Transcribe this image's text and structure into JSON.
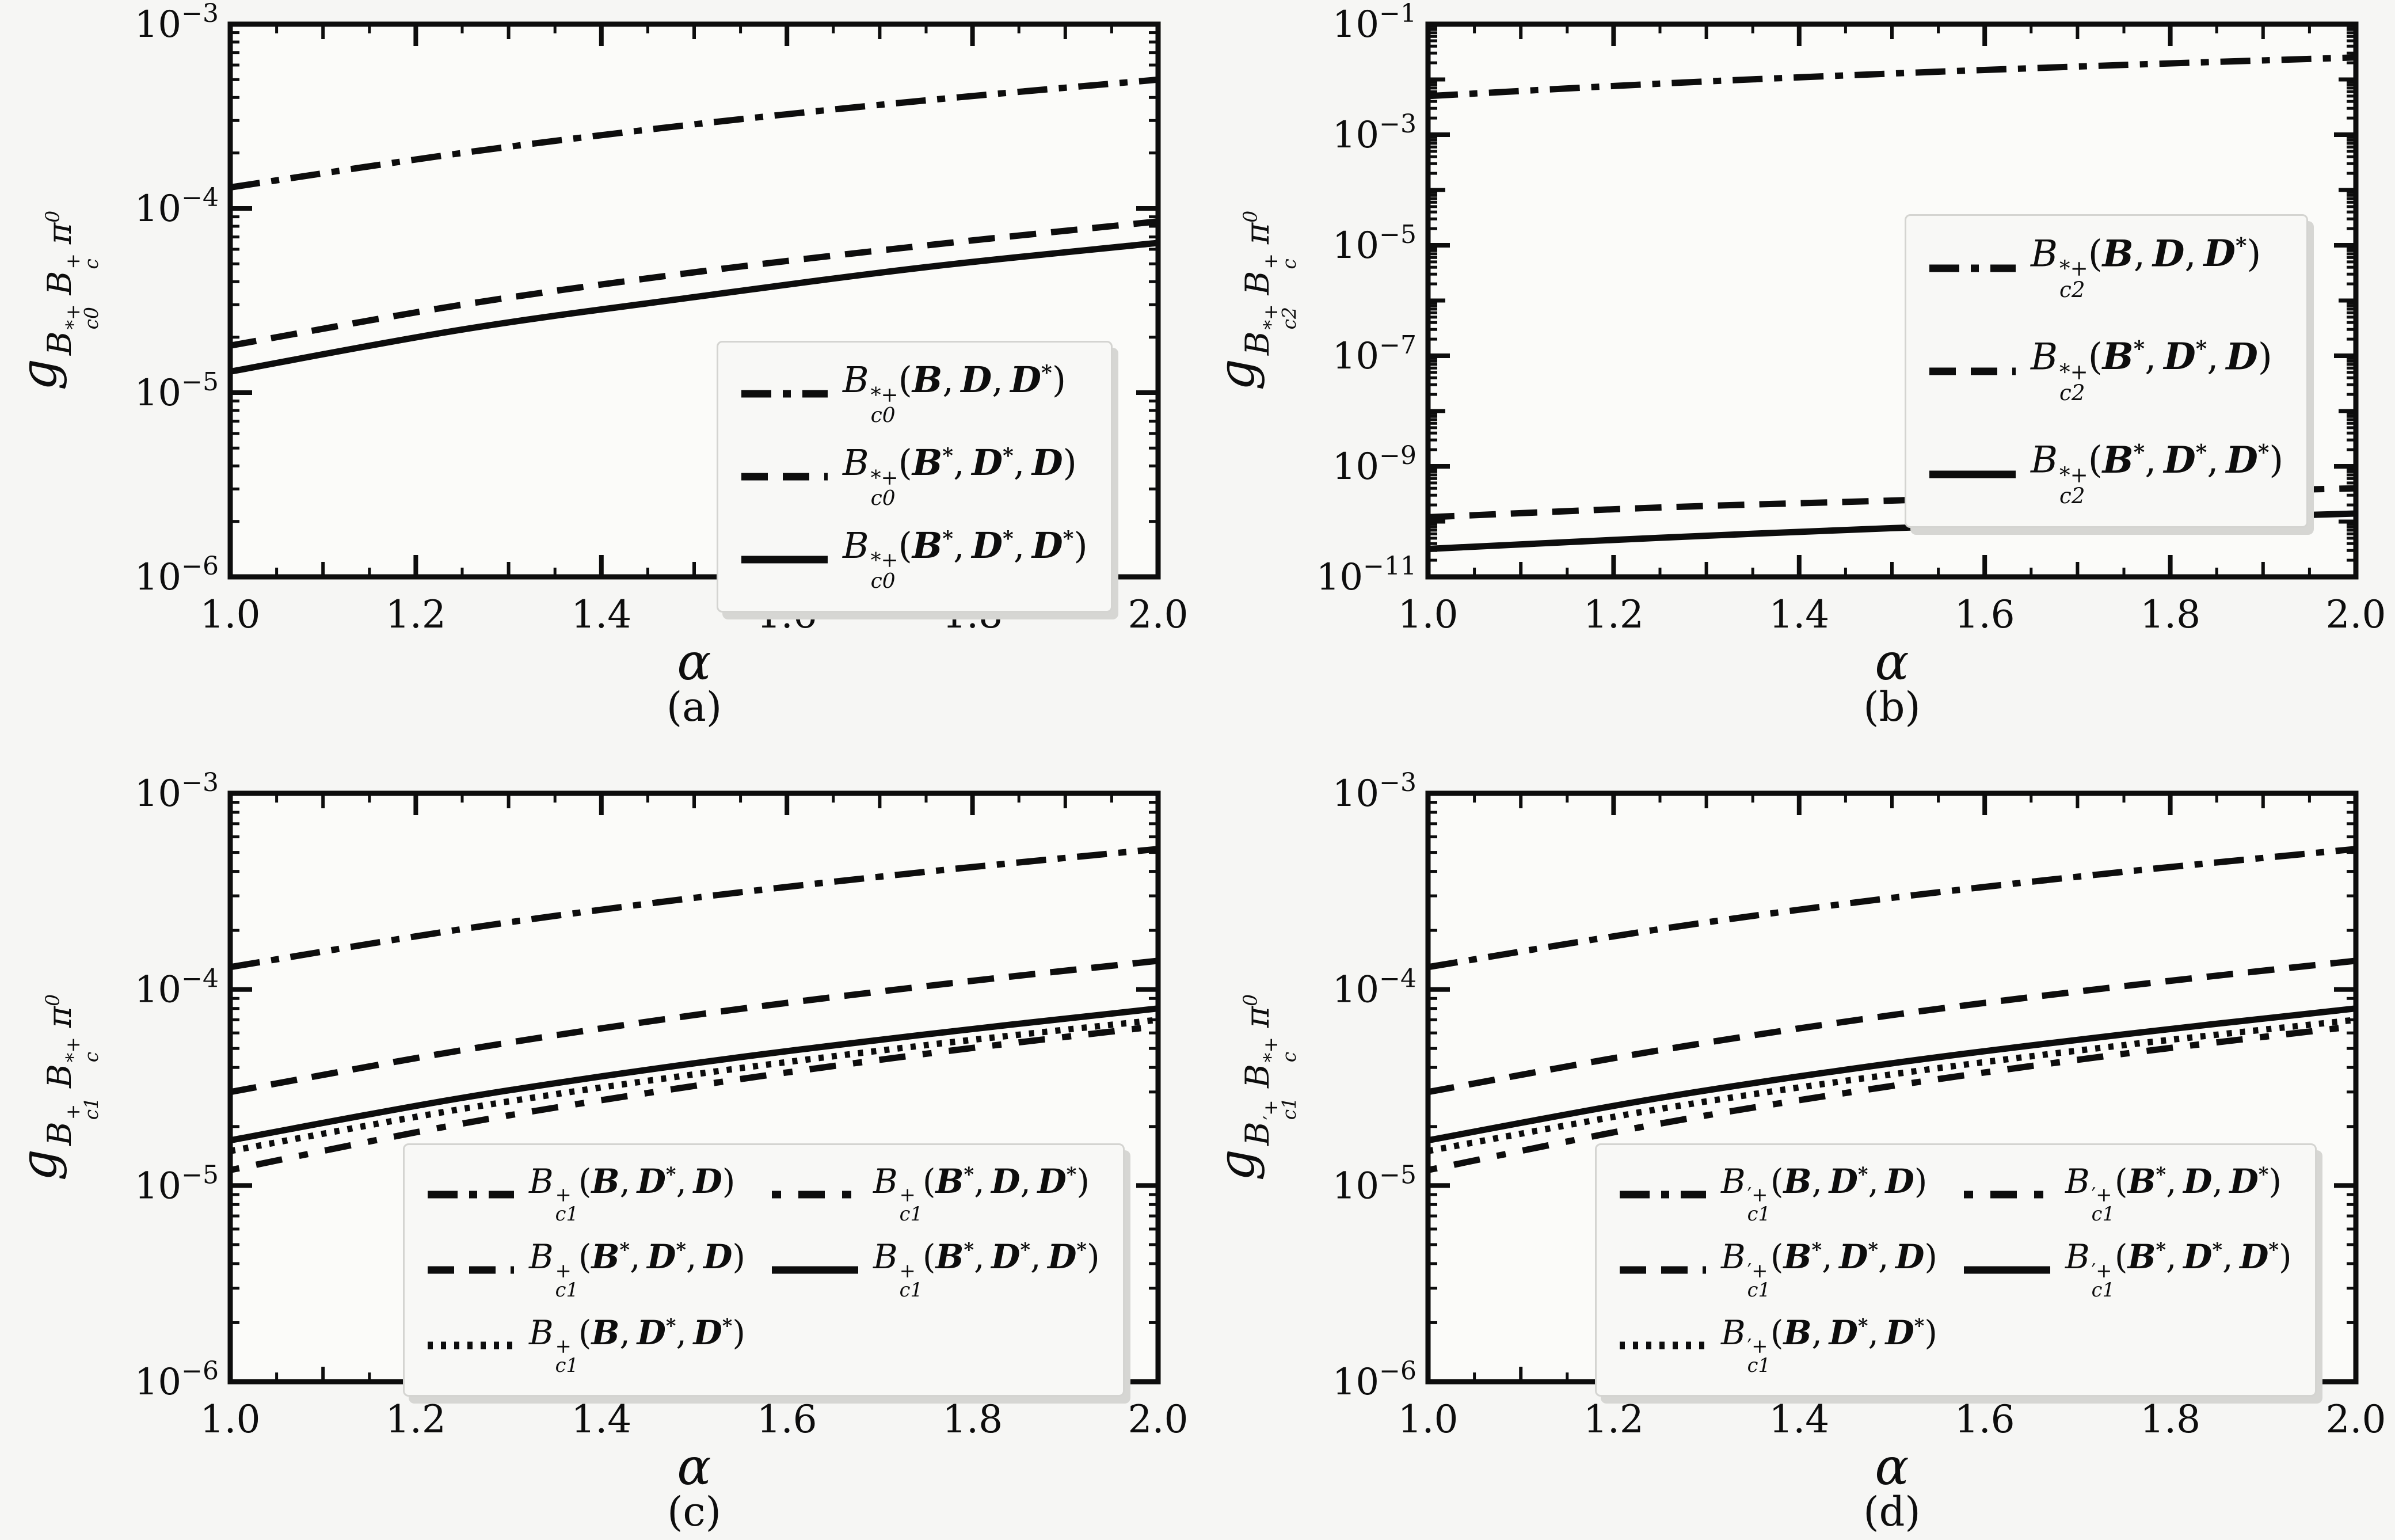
{
  "figure": {
    "background": "#f6f6f4",
    "ink": "#0d0d0d",
    "panel_captions": [
      "(a)",
      "(b)",
      "(c)",
      "(d)"
    ]
  },
  "chart_data": [
    {
      "id": "a",
      "type": "line",
      "caption": "(a)",
      "xlabel": "α",
      "x_range": [
        1.0,
        2.0
      ],
      "x_tick_labels": [
        "1.0",
        "1.2",
        "1.4",
        "1.6",
        "1.8",
        "2.0"
      ],
      "y_scale": "log",
      "y_exp_top": -3,
      "y_exp_bottom": -6,
      "y_tick_exponents": [
        -3,
        -4,
        -5,
        -6
      ],
      "grid": false,
      "ylabel": {
        "g": "g",
        "terms": [
          {
            "b": "B",
            "sup": "*+",
            "sub": "c0"
          },
          {
            "b": "B",
            "sup": "+",
            "sub": "c"
          },
          {
            "b": "π",
            "sup": "0",
            "sub": ""
          }
        ]
      },
      "legend_pos": "lower right inside",
      "legend_order": [
        0,
        1,
        2
      ],
      "series": [
        {
          "style": "dashdot",
          "label": {
            "b": "B",
            "sup": "*+",
            "sub": "c0",
            "args": [
              [
                "B",
                ""
              ],
              [
                "D",
                ""
              ],
              [
                "D",
                "*"
              ]
            ]
          },
          "alpha": [
            1.0,
            1.25,
            1.5,
            1.75,
            2.0
          ],
          "values": [
            0.00013,
            0.0002,
            0.000286,
            0.000386,
            0.0005
          ]
        },
        {
          "style": "dashed",
          "label": {
            "b": "B",
            "sup": "*+",
            "sub": "c0",
            "args": [
              [
                "B",
                "*"
              ],
              [
                "D",
                "*"
              ],
              [
                "D",
                ""
              ]
            ]
          },
          "alpha": [
            1.0,
            1.25,
            1.5,
            1.75,
            2.0
          ],
          "values": [
            1.8e-05,
            3e-05,
            4.5e-05,
            6.3e-05,
            8.5e-05
          ]
        },
        {
          "style": "solid",
          "label": {
            "b": "B",
            "sup": "*+",
            "sub": "c0",
            "args": [
              [
                "B",
                "*"
              ],
              [
                "D",
                "*"
              ],
              [
                "D",
                "*"
              ]
            ]
          },
          "alpha": [
            1.0,
            1.25,
            1.5,
            1.75,
            2.0
          ],
          "values": [
            1.3e-05,
            2.2e-05,
            3.3e-05,
            4.8e-05,
            6.5e-05
          ]
        }
      ]
    },
    {
      "id": "b",
      "type": "line",
      "caption": "(b)",
      "xlabel": "α",
      "x_range": [
        1.0,
        2.0
      ],
      "x_tick_labels": [
        "1.0",
        "1.2",
        "1.4",
        "1.6",
        "1.8",
        "2.0"
      ],
      "y_scale": "log",
      "y_exp_top": -1,
      "y_exp_bottom": -11,
      "y_tick_exponents": [
        -1,
        -3,
        -5,
        -7,
        -9,
        -11
      ],
      "grid": false,
      "ylabel": {
        "g": "g",
        "terms": [
          {
            "b": "B",
            "sup": "*+",
            "sub": "c2"
          },
          {
            "b": "B",
            "sup": "+",
            "sub": "c"
          },
          {
            "b": "π",
            "sup": "0",
            "sub": ""
          }
        ]
      },
      "legend_pos": "upper center inside",
      "legend_order": [
        0,
        1,
        2
      ],
      "series": [
        {
          "style": "dashdot",
          "label": {
            "b": "B",
            "sup": "*+",
            "sub": "c2",
            "args": [
              [
                "B",
                ""
              ],
              [
                "D",
                ""
              ],
              [
                "D",
                "*"
              ]
            ]
          },
          "alpha": [
            1.0,
            1.25,
            1.5,
            1.75,
            2.0
          ],
          "values": [
            0.005,
            0.0084,
            0.0128,
            0.0183,
            0.025
          ]
        },
        {
          "style": "dashed",
          "label": {
            "b": "B",
            "sup": "*+",
            "sub": "c2",
            "args": [
              [
                "B",
                "*"
              ],
              [
                "D",
                "*"
              ],
              [
                "D",
                ""
              ]
            ]
          },
          "alpha": [
            1.0,
            1.25,
            1.5,
            1.75,
            2.0
          ],
          "values": [
            1.2e-10,
            1.8e-10,
            2.4e-10,
            3.2e-10,
            4e-10
          ]
        },
        {
          "style": "solid",
          "label": {
            "b": "B",
            "sup": "*+",
            "sub": "c2",
            "args": [
              [
                "B",
                "*"
              ],
              [
                "D",
                "*"
              ],
              [
                "D",
                "*"
              ]
            ]
          },
          "alpha": [
            1.0,
            1.25,
            1.5,
            1.75,
            2.0
          ],
          "values": [
            3.2e-11,
            5.1e-11,
            7.6e-11,
            1.05e-10,
            1.4e-10
          ]
        }
      ]
    },
    {
      "id": "c",
      "type": "line",
      "caption": "(c)",
      "xlabel": "α",
      "x_range": [
        1.0,
        2.0
      ],
      "x_tick_labels": [
        "1.0",
        "1.2",
        "1.4",
        "1.6",
        "1.8",
        "2.0"
      ],
      "y_scale": "log",
      "y_exp_top": -3,
      "y_exp_bottom": -6,
      "y_tick_exponents": [
        -3,
        -4,
        -5,
        -6
      ],
      "grid": false,
      "ylabel": {
        "g": "g",
        "terms": [
          {
            "b": "B",
            "sup": "+",
            "sub": "c1"
          },
          {
            "b": "B",
            "sup": "*+",
            "sub": "c"
          },
          {
            "b": "π",
            "sup": "0",
            "sub": ""
          }
        ]
      },
      "legend_pos": "lower right inside, two columns",
      "legend_order": [
        0,
        3,
        1,
        4,
        2
      ],
      "series": [
        {
          "style": "dashdot",
          "label": {
            "b": "B",
            "sup": "+",
            "sub": "c1",
            "args": [
              [
                "B",
                ""
              ],
              [
                "D",
                "*"
              ],
              [
                "D",
                ""
              ]
            ]
          },
          "alpha": [
            1.0,
            1.25,
            1.5,
            1.75,
            2.0
          ],
          "values": [
            0.00013,
            0.000203,
            0.000293,
            0.000398,
            0.00052
          ]
        },
        {
          "style": "dashed",
          "label": {
            "b": "B",
            "sup": "+",
            "sub": "c1",
            "args": [
              [
                "B",
                "*"
              ],
              [
                "D",
                "*"
              ],
              [
                "D",
                ""
              ]
            ]
          },
          "alpha": [
            1.0,
            1.25,
            1.5,
            1.75,
            2.0
          ],
          "values": [
            3e-05,
            4.9e-05,
            7.4e-05,
            0.000104,
            0.00014
          ]
        },
        {
          "style": "dotted",
          "label": {
            "b": "B",
            "sup": "+",
            "sub": "c1",
            "args": [
              [
                "B",
                ""
              ],
              [
                "D",
                "*"
              ],
              [
                "D",
                "*"
              ]
            ]
          },
          "alpha": [
            1.0,
            1.25,
            1.5,
            1.75,
            2.0
          ],
          "values": [
            1.5e-05,
            2.46e-05,
            3.69e-05,
            5.2e-05,
            7e-05
          ]
        },
        {
          "style": "loosedashdot",
          "label": {
            "b": "B",
            "sup": "+",
            "sub": "c1",
            "args": [
              [
                "B",
                "*"
              ],
              [
                "D",
                ""
              ],
              [
                "D",
                "*"
              ]
            ]
          },
          "alpha": [
            1.0,
            1.25,
            1.5,
            1.75,
            2.0
          ],
          "values": [
            1.2e-05,
            2.07e-05,
            3.22e-05,
            4.7e-05,
            6.5e-05
          ]
        },
        {
          "style": "solid",
          "label": {
            "b": "B",
            "sup": "+",
            "sub": "c1",
            "args": [
              [
                "B",
                "*"
              ],
              [
                "D",
                "*"
              ],
              [
                "D",
                "*"
              ]
            ]
          },
          "alpha": [
            1.0,
            1.25,
            1.5,
            1.75,
            2.0
          ],
          "values": [
            1.7e-05,
            2.8e-05,
            4.2e-05,
            5.9e-05,
            8e-05
          ]
        }
      ]
    },
    {
      "id": "d",
      "type": "line",
      "caption": "(d)",
      "xlabel": "α",
      "x_range": [
        1.0,
        2.0
      ],
      "x_tick_labels": [
        "1.0",
        "1.2",
        "1.4",
        "1.6",
        "1.8",
        "2.0"
      ],
      "y_scale": "log",
      "y_exp_top": -3,
      "y_exp_bottom": -6,
      "y_tick_exponents": [
        -3,
        -4,
        -5,
        -6
      ],
      "grid": false,
      "ylabel": {
        "g": "g",
        "terms": [
          {
            "b": "B",
            "sup": "′+",
            "sub": "c1"
          },
          {
            "b": "B",
            "sup": "*+",
            "sub": "c"
          },
          {
            "b": "π",
            "sup": "0",
            "sub": ""
          }
        ]
      },
      "legend_pos": "lower right inside, two columns",
      "legend_order": [
        0,
        3,
        1,
        4,
        2
      ],
      "series": [
        {
          "style": "dashdot",
          "label": {
            "b": "B",
            "sup": "′+",
            "sub": "c1",
            "args": [
              [
                "B",
                ""
              ],
              [
                "D",
                "*"
              ],
              [
                "D",
                ""
              ]
            ]
          },
          "alpha": [
            1.0,
            1.25,
            1.5,
            1.75,
            2.0
          ],
          "values": [
            0.00013,
            0.000203,
            0.000293,
            0.000398,
            0.00052
          ]
        },
        {
          "style": "dashed",
          "label": {
            "b": "B",
            "sup": "′+",
            "sub": "c1",
            "args": [
              [
                "B",
                "*"
              ],
              [
                "D",
                "*"
              ],
              [
                "D",
                ""
              ]
            ]
          },
          "alpha": [
            1.0,
            1.25,
            1.5,
            1.75,
            2.0
          ],
          "values": [
            3e-05,
            4.9e-05,
            7.4e-05,
            0.000104,
            0.00014
          ]
        },
        {
          "style": "dotted",
          "label": {
            "b": "B",
            "sup": "′+",
            "sub": "c1",
            "args": [
              [
                "B",
                ""
              ],
              [
                "D",
                "*"
              ],
              [
                "D",
                "*"
              ]
            ]
          },
          "alpha": [
            1.0,
            1.25,
            1.5,
            1.75,
            2.0
          ],
          "values": [
            1.5e-05,
            2.46e-05,
            3.69e-05,
            5.2e-05,
            7e-05
          ]
        },
        {
          "style": "loosedashdot",
          "label": {
            "b": "B",
            "sup": "′+",
            "sub": "c1",
            "args": [
              [
                "B",
                "*"
              ],
              [
                "D",
                ""
              ],
              [
                "D",
                "*"
              ]
            ]
          },
          "alpha": [
            1.0,
            1.25,
            1.5,
            1.75,
            2.0
          ],
          "values": [
            1.2e-05,
            2.07e-05,
            3.22e-05,
            4.7e-05,
            6.5e-05
          ]
        },
        {
          "style": "solid",
          "label": {
            "b": "B",
            "sup": "′+",
            "sub": "c1",
            "args": [
              [
                "B",
                "*"
              ],
              [
                "D",
                "*"
              ],
              [
                "D",
                "*"
              ]
            ]
          },
          "alpha": [
            1.0,
            1.25,
            1.5,
            1.75,
            2.0
          ],
          "values": [
            1.7e-05,
            2.8e-05,
            4.2e-05,
            5.9e-05,
            8e-05
          ]
        }
      ]
    }
  ]
}
